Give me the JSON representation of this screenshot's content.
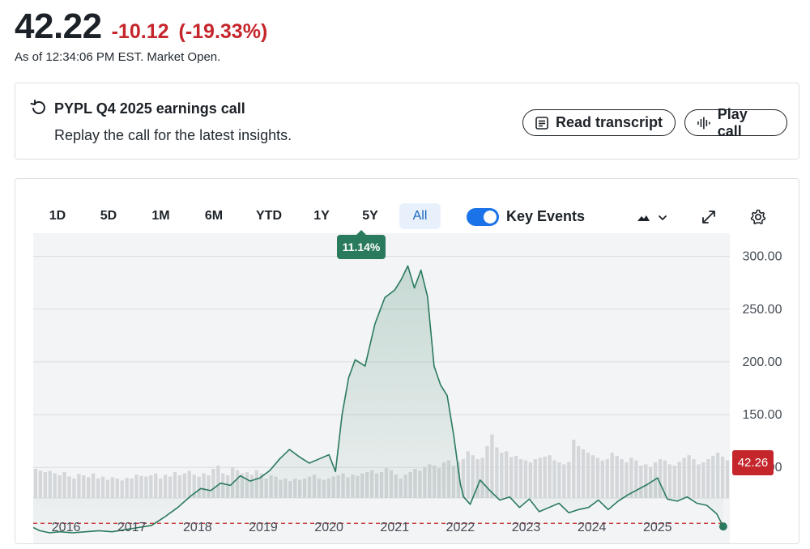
{
  "quote": {
    "price": "42.22",
    "change": "-10.12",
    "change_pct": "(-19.33%)",
    "as_of": "As of 12:34:06 PM EST. Market Open.",
    "negative_color": "#c5262b"
  },
  "earnings": {
    "icon": "replay-icon",
    "title": "PYPL Q4 2025 earnings call",
    "subtitle": "Replay the call for the latest insights.",
    "read_label": "Read transcript",
    "read_icon": "transcript-icon",
    "play_label": "Play call",
    "play_icon": "audio-waveform-icon"
  },
  "toolbar": {
    "ranges": [
      "1D",
      "5D",
      "1M",
      "6M",
      "YTD",
      "1Y",
      "5Y",
      "All"
    ],
    "selected_range": "All",
    "key_events_label": "Key Events",
    "key_events_on": true,
    "chart_type_icon": "mountain-chart-icon",
    "expand_icon": "expand-icon",
    "settings_icon": "gear-icon",
    "return_badge": "11.14%"
  },
  "chart_data": {
    "type": "area",
    "x_ticks": [
      "2016",
      "2017",
      "2018",
      "2019",
      "2020",
      "2021",
      "2022",
      "2023",
      "2024",
      "2025"
    ],
    "y_ticks": [
      "300.00",
      "250.00",
      "200.00",
      "150.00",
      "100.00"
    ],
    "ylim": [
      28,
      322
    ],
    "xlim": [
      2015.5,
      2026.1
    ],
    "current_price_label": "42.26",
    "reference_price": 47,
    "line_color": "#2a7a5e",
    "series": [
      {
        "x": [
          2015.5,
          2015.6,
          2015.75,
          2015.9,
          2016.1,
          2016.3,
          2016.5,
          2016.7,
          2016.9,
          2017.1,
          2017.3,
          2017.5,
          2017.7,
          2017.9,
          2018.05,
          2018.2,
          2018.35,
          2018.5,
          2018.65,
          2018.8,
          2018.95,
          2019.1,
          2019.25,
          2019.4,
          2019.55,
          2019.7,
          2019.85,
          2020.0,
          2020.1,
          2020.2,
          2020.3,
          2020.4,
          2020.55,
          2020.7,
          2020.85,
          2021.0,
          2021.1,
          2021.2,
          2021.3,
          2021.4,
          2021.5,
          2021.6,
          2021.7,
          2021.8,
          2021.9,
          2022.0,
          2022.05,
          2022.15,
          2022.3,
          2022.45,
          2022.6,
          2022.75,
          2022.9,
          2023.05,
          2023.2,
          2023.35,
          2023.5,
          2023.65,
          2023.8,
          2023.95,
          2024.1,
          2024.25,
          2024.4,
          2024.55,
          2024.7,
          2024.85,
          2025.0,
          2025.15,
          2025.3,
          2025.45,
          2025.6,
          2025.75,
          2025.9,
          2026.0
        ],
        "y": [
          43,
          40,
          38,
          39,
          38,
          39,
          40,
          39,
          41,
          43,
          45,
          53,
          62,
          73,
          80,
          78,
          85,
          83,
          92,
          87,
          90,
          97,
          108,
          117,
          110,
          104,
          108,
          112,
          96,
          150,
          185,
          202,
          196,
          236,
          261,
          268,
          278,
          291,
          270,
          287,
          262,
          196,
          178,
          168,
          130,
          84,
          72,
          65,
          88,
          78,
          69,
          72,
          62,
          70,
          58,
          62,
          66,
          57,
          60,
          62,
          69,
          60,
          68,
          74,
          79,
          84,
          90,
          70,
          68,
          72,
          66,
          64,
          56,
          44
        ]
      }
    ],
    "volume": [
      0.45,
      0.42,
      0.4,
      0.42,
      0.38,
      0.35,
      0.4,
      0.33,
      0.3,
      0.37,
      0.35,
      0.32,
      0.38,
      0.3,
      0.33,
      0.28,
      0.32,
      0.3,
      0.27,
      0.31,
      0.3,
      0.36,
      0.34,
      0.33,
      0.35,
      0.38,
      0.3,
      0.36,
      0.33,
      0.4,
      0.35,
      0.38,
      0.42,
      0.36,
      0.33,
      0.38,
      0.35,
      0.45,
      0.5,
      0.38,
      0.35,
      0.47,
      0.43,
      0.38,
      0.4,
      0.36,
      0.43,
      0.38,
      0.3,
      0.35,
      0.33,
      0.28,
      0.3,
      0.26,
      0.3,
      0.28,
      0.3,
      0.33,
      0.36,
      0.3,
      0.28,
      0.3,
      0.33,
      0.35,
      0.38,
      0.32,
      0.36,
      0.34,
      0.38,
      0.4,
      0.43,
      0.38,
      0.4,
      0.46,
      0.43,
      0.36,
      0.3,
      0.36,
      0.4,
      0.45,
      0.42,
      0.48,
      0.52,
      0.5,
      0.46,
      0.55,
      0.58,
      0.5,
      0.56,
      0.6,
      0.72,
      0.66,
      0.6,
      0.62,
      0.8,
      0.98,
      0.78,
      0.7,
      0.72,
      0.63,
      0.65,
      0.6,
      0.58,
      0.55,
      0.6,
      0.62,
      0.64,
      0.66,
      0.58,
      0.55,
      0.52,
      0.56,
      0.9,
      0.8,
      0.75,
      0.7,
      0.66,
      0.62,
      0.58,
      0.6,
      0.7,
      0.65,
      0.6,
      0.55,
      0.62,
      0.58,
      0.5,
      0.52,
      0.48,
      0.55,
      0.6,
      0.58,
      0.52,
      0.5,
      0.56,
      0.62,
      0.66,
      0.6,
      0.52,
      0.55,
      0.6,
      0.65,
      0.7,
      0.64,
      0.58
    ]
  }
}
